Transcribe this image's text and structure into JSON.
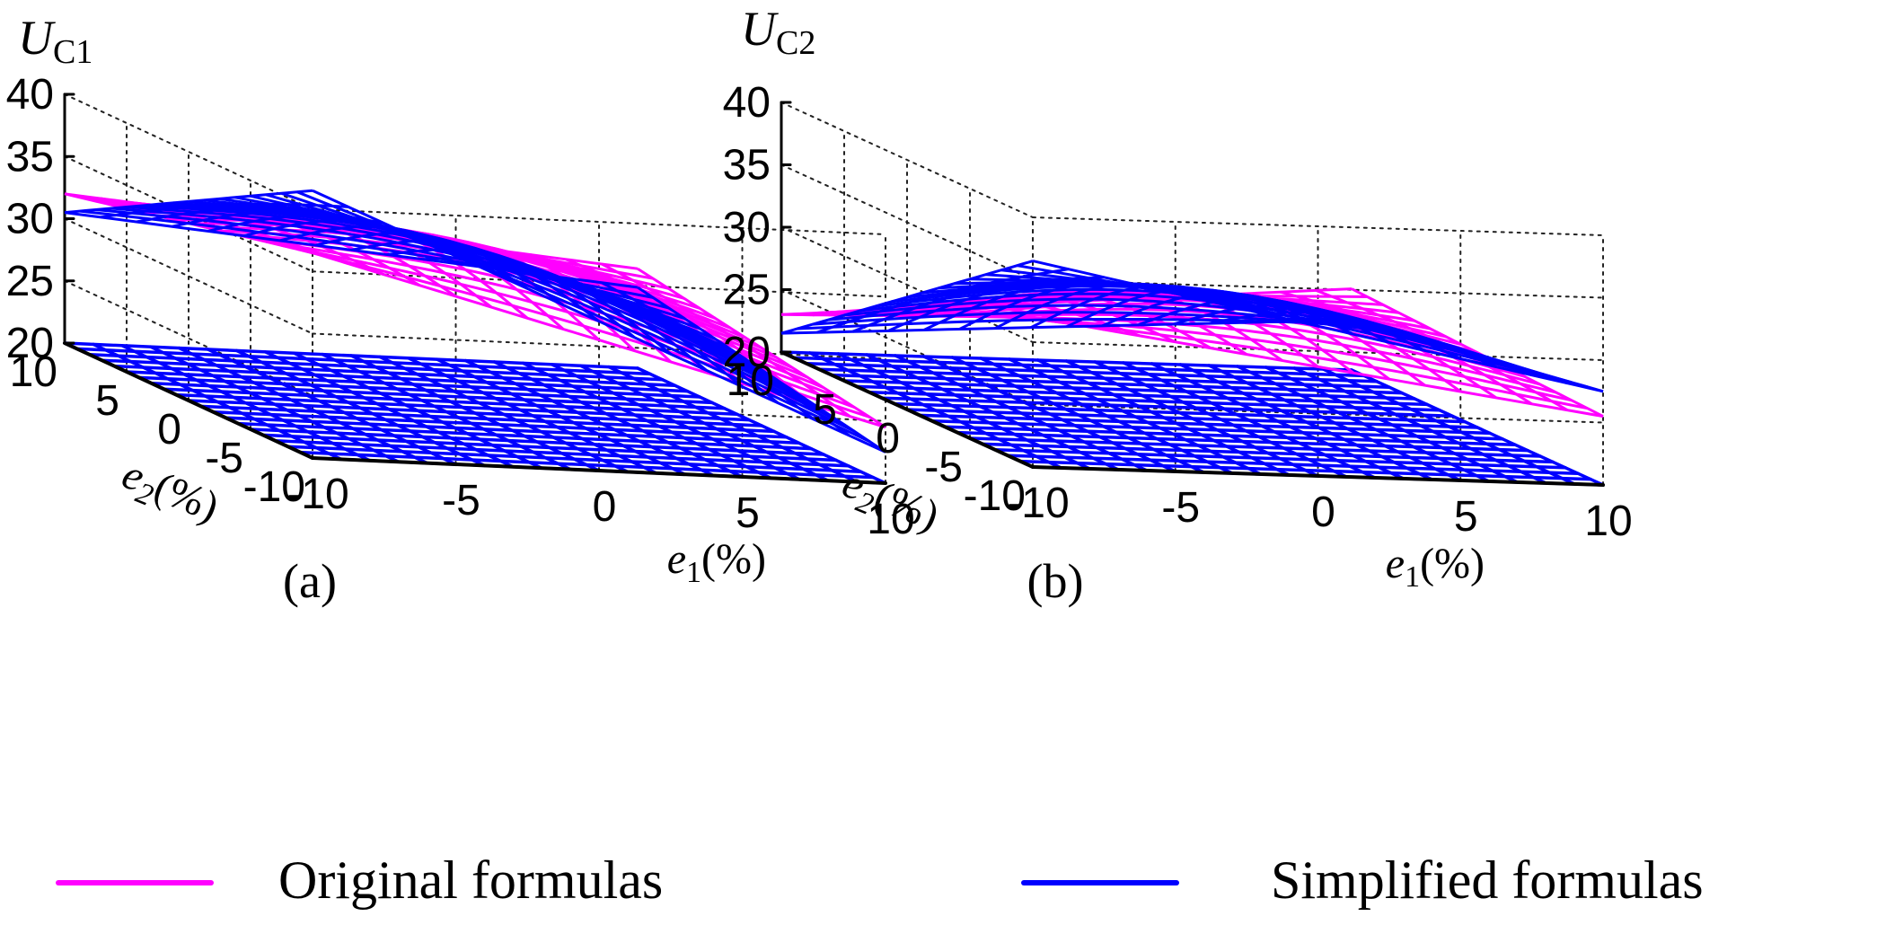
{
  "legend": {
    "position": "bottom",
    "items": [
      {
        "label": "Original formulas",
        "color": "#ff00ff"
      },
      {
        "label": "Simplified formulas",
        "color": "#0000ff"
      }
    ]
  },
  "chart_data": [
    {
      "type": "surface",
      "panel_label": "(a)",
      "zlabel": {
        "base": "U",
        "sub": "C1"
      },
      "xlabel": {
        "base": "e",
        "sub": "1",
        "unit": "(%)"
      },
      "ylabel": {
        "base": "e",
        "sub": "2",
        "unit": "(%)"
      },
      "xlim": [
        -10,
        10
      ],
      "ylim": [
        -10,
        10
      ],
      "zlim": [
        20,
        40
      ],
      "x_ticks": [
        "-10",
        "-5",
        "0",
        "5",
        "10"
      ],
      "y_ticks": [
        "-10",
        "-5",
        "0",
        "5",
        "10"
      ],
      "z_ticks": [
        "20",
        "25",
        "30",
        "35",
        "40"
      ],
      "grid": true,
      "series": [
        {
          "name": "Original formulas",
          "color": "#ff00ff",
          "corners": {
            "x-10_y-10": 36.5,
            "x-10_y10": 32.0,
            "x10_y-10": 24.5,
            "x10_y10": 28.0
          }
        },
        {
          "name": "Simplified formulas",
          "color": "#0000ff",
          "corners": {
            "x-10_y-10": 41.5,
            "x-10_y10": 30.5,
            "x10_y-10": 22.5,
            "x10_y10": 26.5
          }
        }
      ]
    },
    {
      "type": "surface",
      "panel_label": "(b)",
      "zlabel": {
        "base": "U",
        "sub": "C2"
      },
      "xlabel": {
        "base": "e",
        "sub": "1",
        "unit": "(%)"
      },
      "ylabel": {
        "base": "e",
        "sub": "2",
        "unit": "(%)"
      },
      "xlim": [
        -10,
        10
      ],
      "ylim": [
        -10,
        10
      ],
      "zlim": [
        20,
        40
      ],
      "x_ticks": [
        "-10",
        "-5",
        "0",
        "5",
        "10"
      ],
      "y_ticks": [
        "-10",
        "-5",
        "0",
        "5",
        "10"
      ],
      "z_ticks": [
        "20",
        "25",
        "30",
        "35",
        "40"
      ],
      "grid": true,
      "series": [
        {
          "name": "Original formulas",
          "color": "#ff00ff",
          "corners": {
            "x-10_y-10": 32.0,
            "x-10_y10": 23.0,
            "x10_y-10": 25.5,
            "x10_y10": 26.5
          }
        },
        {
          "name": "Simplified formulas",
          "color": "#0000ff",
          "corners": {
            "x-10_y-10": 36.5,
            "x-10_y10": 21.5,
            "x10_y-10": 27.5,
            "x10_y10": 24.0
          }
        }
      ]
    }
  ]
}
